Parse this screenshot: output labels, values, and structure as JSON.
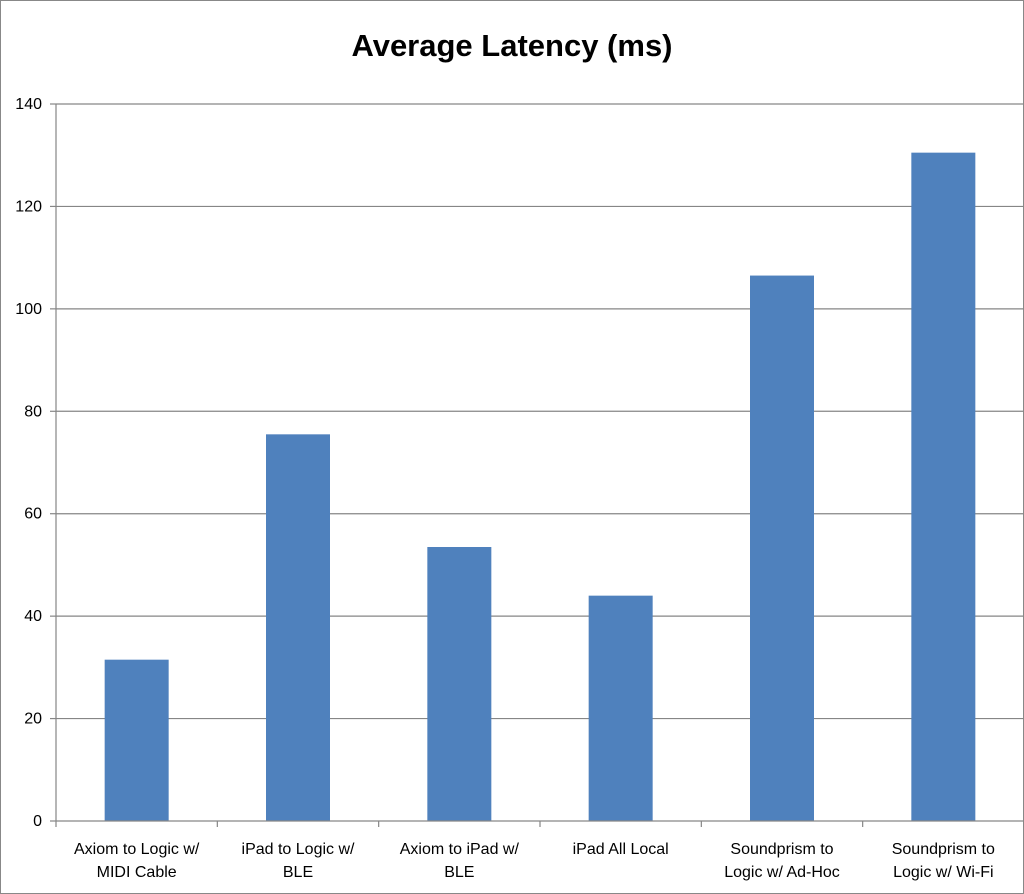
{
  "chart_data": {
    "type": "bar",
    "title": "Average Latency (ms)",
    "xlabel": "",
    "ylabel": "",
    "ylim": [
      0,
      140
    ],
    "yticks": [
      0,
      20,
      40,
      60,
      80,
      100,
      120,
      140
    ],
    "grid": true,
    "legend": "none",
    "categories": [
      [
        "Axiom to Logic w/",
        "MIDI Cable"
      ],
      [
        "iPad to Logic w/",
        "BLE"
      ],
      [
        "Axiom to iPad w/",
        "BLE"
      ],
      [
        "iPad All Local"
      ],
      [
        "Soundprism to",
        "Logic w/ Ad-Hoc"
      ],
      [
        "Soundprism to",
        "Logic w/ Wi-Fi"
      ]
    ],
    "values": [
      31.5,
      75.5,
      53.5,
      44.0,
      106.5,
      130.5
    ],
    "bar_color": "#4f81bd",
    "grid_color": "#868686"
  }
}
